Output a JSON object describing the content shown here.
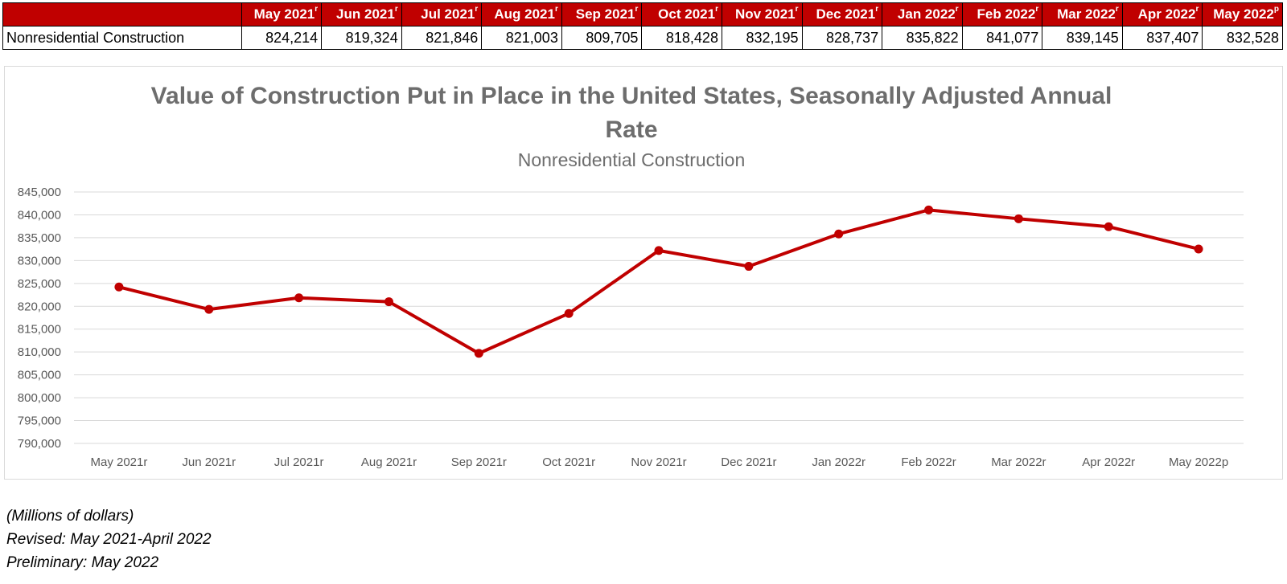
{
  "table": {
    "headers": [
      {
        "label": "May 2021",
        "mark": "r"
      },
      {
        "label": "Jun 2021",
        "mark": "r"
      },
      {
        "label": "Jul 2021",
        "mark": "r"
      },
      {
        "label": "Aug 2021",
        "mark": "r"
      },
      {
        "label": "Sep 2021",
        "mark": "r"
      },
      {
        "label": "Oct 2021",
        "mark": "r"
      },
      {
        "label": "Nov 2021",
        "mark": "r"
      },
      {
        "label": "Dec 2021",
        "mark": "r"
      },
      {
        "label": "Jan 2022",
        "mark": "r"
      },
      {
        "label": "Feb 2022",
        "mark": "r"
      },
      {
        "label": "Mar 2022",
        "mark": "r"
      },
      {
        "label": "Apr 2022",
        "mark": "r"
      },
      {
        "label": "May 2022",
        "mark": "p"
      }
    ],
    "row_label": "Nonresidential Construction",
    "values": [
      "824,214",
      "819,324",
      "821,846",
      "821,003",
      "809,705",
      "818,428",
      "832,195",
      "828,737",
      "835,822",
      "841,077",
      "839,145",
      "837,407",
      "832,528"
    ],
    "header_color": "#c00000"
  },
  "chart_data": {
    "type": "line",
    "title": "Value of Construction Put in Place in the United States, Seasonally Adjusted Annual Rate",
    "subtitle": "Nonresidential Construction",
    "categories": [
      "May 2021r",
      "Jun 2021r",
      "Jul 2021r",
      "Aug 2021r",
      "Sep 2021r",
      "Oct 2021r",
      "Nov 2021r",
      "Dec 2021r",
      "Jan 2022r",
      "Feb 2022r",
      "Mar 2022r",
      "Apr 2022r",
      "May 2022p"
    ],
    "series": [
      {
        "values": [
          824214,
          819324,
          821846,
          821003,
          809705,
          818428,
          832195,
          828737,
          835822,
          841077,
          839145,
          837407,
          832528
        ]
      }
    ],
    "ylim": [
      790000,
      845000
    ],
    "yticks": [
      790000,
      795000,
      800000,
      805000,
      810000,
      815000,
      820000,
      825000,
      830000,
      835000,
      840000,
      845000
    ],
    "ytick_labels": [
      "790,000",
      "795,000",
      "800,000",
      "805,000",
      "810,000",
      "815,000",
      "820,000",
      "825,000",
      "830,000",
      "835,000",
      "840,000",
      "845,000"
    ],
    "grid": true,
    "legend": "none",
    "line_color": "#c00000"
  },
  "notes": {
    "units": "(Millions of dollars)",
    "revised": "Revised:  May 2021-April 2022",
    "preliminary": "Preliminary: May 2022"
  }
}
